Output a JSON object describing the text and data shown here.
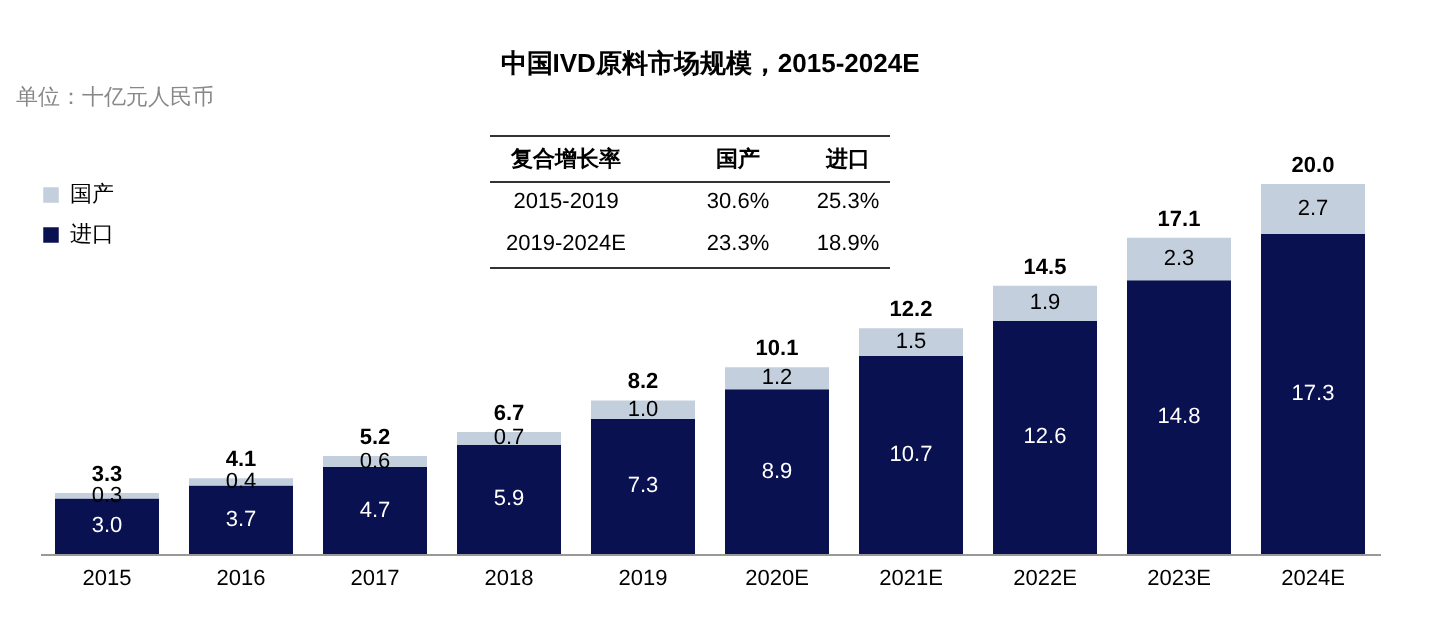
{
  "chart_data": {
    "type": "bar",
    "title": "中国IVD原料市场规模，2015-2024E",
    "subtitle": "单位：十亿元人民币",
    "categories": [
      "2015",
      "2016",
      "2017",
      "2018",
      "2019",
      "2020E",
      "2021E",
      "2022E",
      "2023E",
      "2024E"
    ],
    "stacked": true,
    "series": [
      {
        "name": "进口",
        "color": "#0a1150",
        "values": [
          3.0,
          3.7,
          4.7,
          5.9,
          7.3,
          8.9,
          10.7,
          12.6,
          14.8,
          17.3
        ],
        "value_labels": [
          "3.0",
          "3.7",
          "4.7",
          "5.9",
          "7.3",
          "8.9",
          "10.7",
          "12.6",
          "14.8",
          "17.3"
        ]
      },
      {
        "name": "国产",
        "color": "#c3cfdc",
        "values": [
          0.3,
          0.4,
          0.6,
          0.7,
          1.0,
          1.2,
          1.5,
          1.9,
          2.3,
          2.7
        ],
        "value_labels": [
          "0.3",
          "0.4",
          "0.6",
          "0.7",
          "1.0",
          "1.2",
          "1.5",
          "1.9",
          "2.3",
          "2.7"
        ]
      }
    ],
    "totals": [
      "3.3",
      "4.1",
      "5.2",
      "6.7",
      "8.2",
      "10.1",
      "12.2",
      "14.5",
      "17.1",
      "20.0"
    ],
    "annotations": [
      "复合增长率",
      "国产",
      "进口",
      "2015-2019",
      "30.6%",
      "25.3%",
      "2019-2024E",
      "23.3%",
      "18.9%"
    ],
    "grid": false,
    "legend": "top left"
  }
}
